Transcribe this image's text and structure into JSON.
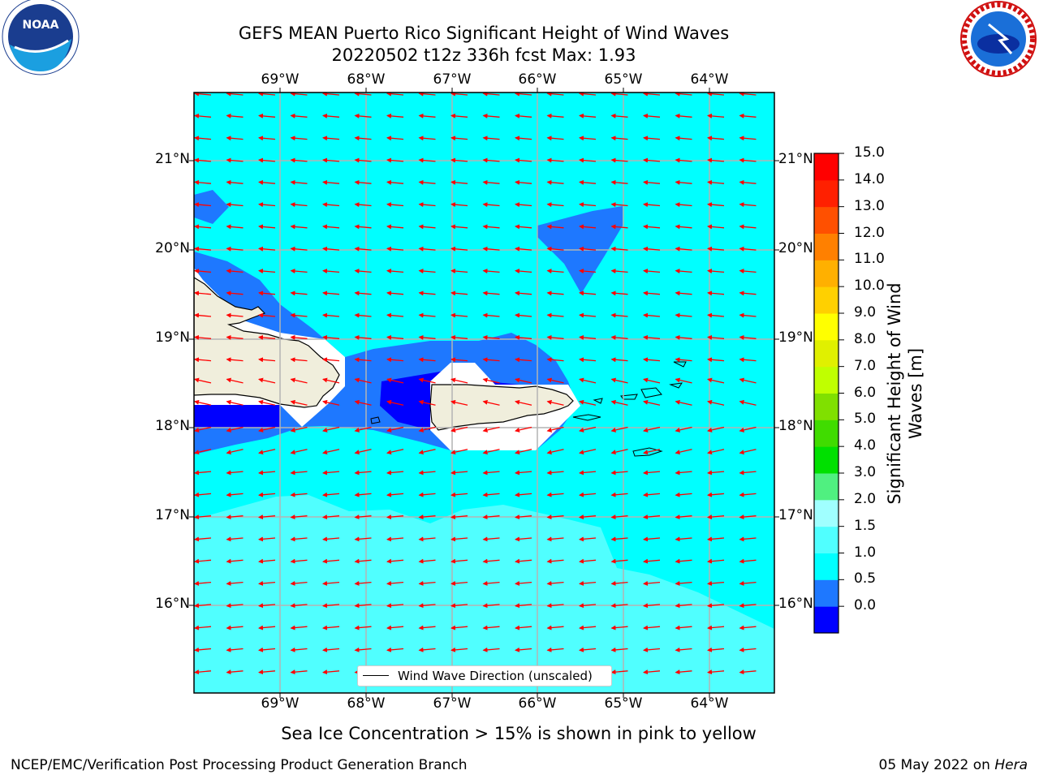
{
  "title_line1": "GEFS MEAN Puerto Rico Significant Height of Wind Waves",
  "title_line2": "20220502 t12z 336h fcst   Max: 1.93",
  "lon_labels": [
    "69°W",
    "68°W",
    "67°W",
    "66°W",
    "65°W",
    "64°W"
  ],
  "lat_labels": [
    "21°N",
    "20°N",
    "19°N",
    "18°N",
    "17°N",
    "16°N"
  ],
  "colorbar": {
    "title": "Significant Height of Wind Waves [m]",
    "ticks": [
      "15.0",
      "14.0",
      "13.0",
      "12.0",
      "11.0",
      "10.0",
      "9.0",
      "8.0",
      "7.0",
      "6.0",
      "5.0",
      "4.0",
      "3.0",
      "2.0",
      "1.5",
      "1.0",
      "0.5",
      "0.0"
    ],
    "colors": [
      "#0000ff",
      "#1e78ff",
      "#00ffff",
      "#50ffff",
      "#a0ffff",
      "#50f080",
      "#00e000",
      "#40dc00",
      "#80e000",
      "#c0ff00",
      "#e0f000",
      "#ffff00",
      "#ffd000",
      "#ffb000",
      "#ff8000",
      "#ff5000",
      "#ff2000",
      "#ff0000"
    ]
  },
  "legend_label": "Wind Wave Direction (unscaled)",
  "ice_note": "Sea Ice Concentration > 15% is shown in pink to yellow",
  "footer_left": "NCEP/EMC/Verification Post Processing Product Generation Branch",
  "footer_right_date": "05 May 2022 on ",
  "footer_right_host": "Hera",
  "logos": {
    "left": "noaa-logo",
    "right": "national-weather-service-logo"
  }
}
